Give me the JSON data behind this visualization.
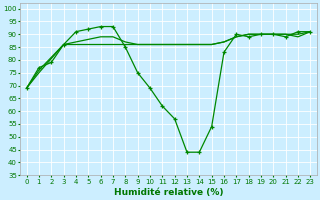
{
  "xlabel": "Humidité relative (%)",
  "bg_color": "#cceeff",
  "grid_color": "#ffffff",
  "line_color": "#008800",
  "xlim": [
    -0.5,
    23.5
  ],
  "ylim": [
    35,
    102
  ],
  "yticks": [
    35,
    40,
    45,
    50,
    55,
    60,
    65,
    70,
    75,
    80,
    85,
    90,
    95,
    100
  ],
  "xticks": [
    0,
    1,
    2,
    3,
    4,
    5,
    6,
    7,
    8,
    9,
    10,
    11,
    12,
    13,
    14,
    15,
    16,
    17,
    18,
    19,
    20,
    21,
    22,
    23
  ],
  "series1_x": [
    0,
    1,
    2,
    3,
    4,
    5,
    6,
    7,
    8,
    9,
    10,
    11,
    12,
    13,
    14,
    15,
    16,
    17,
    18,
    19,
    20,
    21,
    22,
    23
  ],
  "series1_y": [
    69,
    77,
    79,
    86,
    91,
    92,
    93,
    93,
    85,
    75,
    69,
    62,
    57,
    44,
    44,
    54,
    83,
    90,
    89,
    90,
    90,
    89,
    91,
    91
  ],
  "series2_x": [
    0,
    1,
    3,
    4,
    5,
    6,
    7,
    8,
    9,
    10,
    11,
    12,
    13,
    14,
    15,
    16,
    17,
    18,
    19,
    20,
    21,
    22,
    23
  ],
  "series2_y": [
    69,
    75,
    86,
    86,
    86,
    86,
    86,
    86,
    86,
    86,
    86,
    86,
    86,
    86,
    86,
    87,
    89,
    90,
    90,
    90,
    90,
    90,
    91
  ],
  "series3_x": [
    0,
    1,
    3,
    4,
    5,
    6,
    7,
    8,
    9,
    10,
    11,
    12,
    13,
    14,
    15,
    16,
    17,
    18,
    19,
    20,
    21,
    22,
    23
  ],
  "series3_y": [
    69,
    76,
    86,
    87,
    88,
    89,
    89,
    87,
    86,
    86,
    86,
    86,
    86,
    86,
    86,
    87,
    89,
    90,
    90,
    90,
    90,
    89,
    91
  ],
  "xlabel_color": "#007700",
  "tick_color": "#007700",
  "xlabel_fontsize": 6.5,
  "tick_fontsize": 5.0,
  "linewidth": 0.9,
  "marker": "+",
  "markersize": 3.5
}
